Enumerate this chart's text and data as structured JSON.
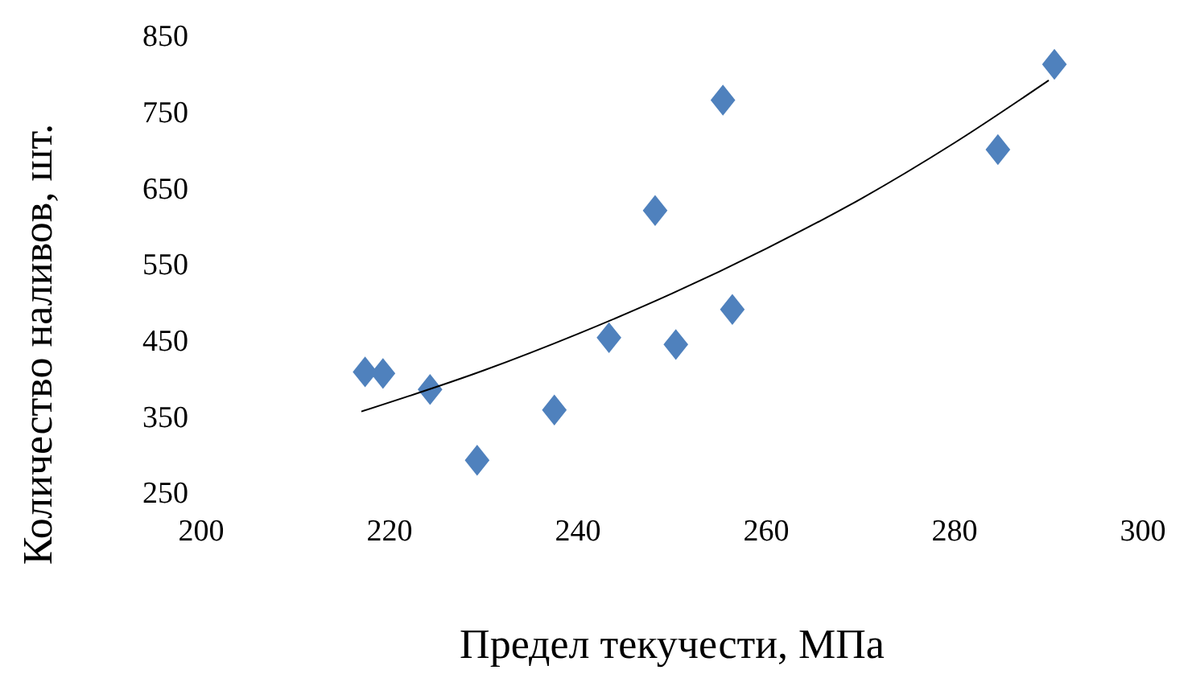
{
  "chart_data": {
    "type": "scatter",
    "xlabel": "Предел текучести, МПа",
    "ylabel": "Количество наливов, шт.",
    "xlim": [
      200,
      300
    ],
    "xticks": [
      200,
      220,
      240,
      260,
      280,
      300
    ],
    "ylim": [
      250,
      850
    ],
    "yticks": [
      250,
      350,
      450,
      550,
      650,
      750,
      850
    ],
    "grid": false,
    "marker": "diamond",
    "series": [
      {
        "color": "#4f81bd",
        "x": [
          217.4,
          219.3,
          224.3,
          229.3,
          237.5,
          243.3,
          250.4,
          248.2,
          255.4,
          256.4,
          284.6,
          290.6
        ],
        "values": [
          408,
          406,
          385,
          292,
          358,
          453,
          444,
          620,
          765,
          490,
          700,
          812
        ]
      },
      {
        "type": "line",
        "color": "#000000",
        "marker": "none",
        "x": [
          217,
          230,
          240,
          250,
          260,
          270,
          280,
          290
        ],
        "values": [
          356,
          410,
          458,
          511,
          570,
          635,
          709,
          791
        ]
      }
    ]
  }
}
